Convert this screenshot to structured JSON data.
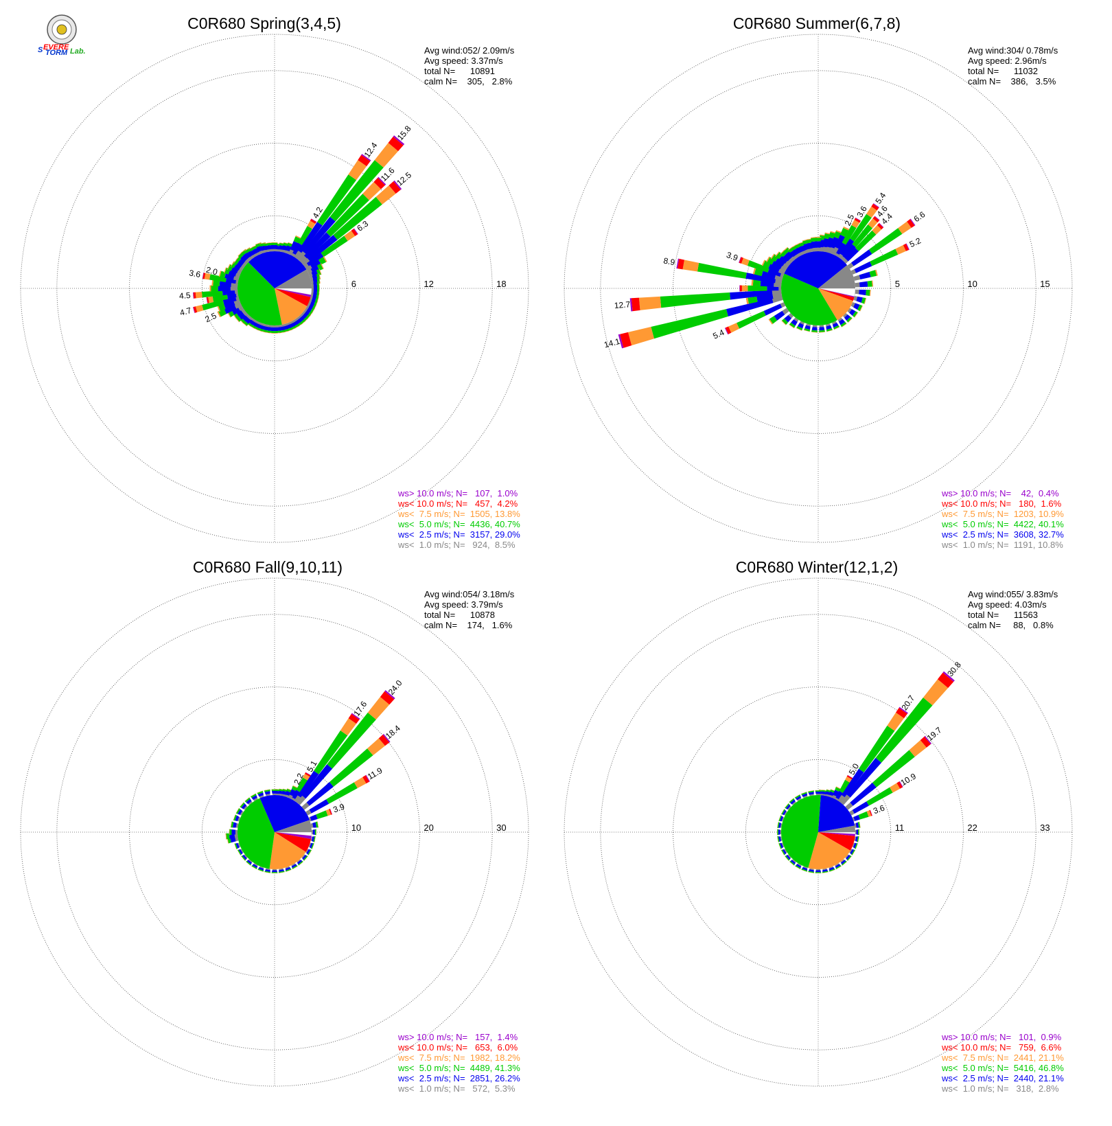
{
  "colors": {
    "gt10": "#9900cc",
    "lt10": "#ff0000",
    "lt7_5": "#ff9933",
    "lt5": "#00cc00",
    "lt2_5": "#0000ee",
    "lt1": "#888888"
  },
  "logo": {
    "name": "severe-storm-lab-logo",
    "text": "Severe Storm Lab."
  },
  "chart_data": [
    {
      "type": "windrose",
      "title": "C0R680 Spring(3,4,5)",
      "info": [
        "Avg wind:052/ 2.09m/s",
        "Avg speed: 3.37m/s",
        "total N=      10891",
        "calm N=    305,   2.8%"
      ],
      "ring_labels": [
        "6",
        "12",
        "18"
      ],
      "rmax": 18,
      "center_pct": {
        "calm": 2.8,
        "lt1": 8.5,
        "lt2_5": 29.0,
        "lt5": 40.7,
        "lt7_5": 13.8,
        "lt10": 4.2,
        "gt10": 1.0
      },
      "petals": [
        {
          "dir": 5,
          "total": 0.8
        },
        {
          "dir": 10,
          "total": 0.9
        },
        {
          "dir": 15,
          "total": 1.0
        },
        {
          "dir": 20,
          "total": 1.1
        },
        {
          "dir": 25,
          "total": 2.0
        },
        {
          "dir": 30,
          "total": 4.2,
          "label": "4.2"
        },
        {
          "dir": 35,
          "total": 12.4,
          "label": "12.4"
        },
        {
          "dir": 40,
          "total": 15.8,
          "label": "15.8"
        },
        {
          "dir": 45,
          "total": 11.6,
          "label": "11.6"
        },
        {
          "dir": 50,
          "total": 12.5,
          "label": "12.5"
        },
        {
          "dir": 55,
          "total": 6.3,
          "label": "6.3"
        },
        {
          "dir": 60,
          "total": 2.2
        },
        {
          "dir": 65,
          "total": 1.6
        },
        {
          "dir": 70,
          "total": 1.2
        },
        {
          "dir": 75,
          "total": 1.0
        },
        {
          "dir": 80,
          "total": 0.9
        },
        {
          "dir": 85,
          "total": 0.8
        },
        {
          "dir": 90,
          "total": 0.8
        },
        {
          "dir": 95,
          "total": 0.8
        },
        {
          "dir": 100,
          "total": 0.8
        },
        {
          "dir": 105,
          "total": 0.8
        },
        {
          "dir": 110,
          "total": 0.8
        },
        {
          "dir": 115,
          "total": 0.8
        },
        {
          "dir": 120,
          "total": 0.8
        },
        {
          "dir": 125,
          "total": 0.8
        },
        {
          "dir": 130,
          "total": 0.8
        },
        {
          "dir": 135,
          "total": 0.8
        },
        {
          "dir": 140,
          "total": 0.8
        },
        {
          "dir": 145,
          "total": 0.8
        },
        {
          "dir": 150,
          "total": 0.8
        },
        {
          "dir": 155,
          "total": 0.8
        },
        {
          "dir": 160,
          "total": 0.8
        },
        {
          "dir": 165,
          "total": 0.8
        },
        {
          "dir": 170,
          "total": 0.8
        },
        {
          "dir": 175,
          "total": 0.8
        },
        {
          "dir": 180,
          "total": 0.8
        },
        {
          "dir": 185,
          "total": 0.8
        },
        {
          "dir": 190,
          "total": 0.8
        },
        {
          "dir": 195,
          "total": 0.8
        },
        {
          "dir": 200,
          "total": 0.8
        },
        {
          "dir": 205,
          "total": 0.8
        },
        {
          "dir": 210,
          "total": 0.8
        },
        {
          "dir": 215,
          "total": 0.8
        },
        {
          "dir": 220,
          "total": 1.0
        },
        {
          "dir": 225,
          "total": 1.0
        },
        {
          "dir": 230,
          "total": 1.2
        },
        {
          "dir": 235,
          "total": 1.2
        },
        {
          "dir": 240,
          "total": 1.6
        },
        {
          "dir": 245,
          "total": 2.5,
          "label": "2.5"
        },
        {
          "dir": 250,
          "total": 2.3
        },
        {
          "dir": 255,
          "total": 4.7,
          "label": "4.7"
        },
        {
          "dir": 260,
          "total": 3.2
        },
        {
          "dir": 265,
          "total": 4.5,
          "label": "4.5"
        },
        {
          "dir": 270,
          "total": 2.8
        },
        {
          "dir": 275,
          "total": 2.6
        },
        {
          "dir": 280,
          "total": 3.6,
          "label": "3.6"
        },
        {
          "dir": 285,
          "total": 2.0,
          "label": "2.0"
        },
        {
          "dir": 290,
          "total": 1.6
        },
        {
          "dir": 295,
          "total": 1.4
        },
        {
          "dir": 300,
          "total": 1.2
        },
        {
          "dir": 305,
          "total": 1.1
        },
        {
          "dir": 310,
          "total": 1.1
        },
        {
          "dir": 315,
          "total": 1.2
        },
        {
          "dir": 320,
          "total": 1.2
        },
        {
          "dir": 325,
          "total": 1.1
        },
        {
          "dir": 330,
          "total": 1.0
        },
        {
          "dir": 335,
          "total": 1.0
        },
        {
          "dir": 340,
          "total": 1.1
        },
        {
          "dir": 345,
          "total": 1.0
        },
        {
          "dir": 350,
          "total": 0.9
        },
        {
          "dir": 355,
          "total": 0.9
        },
        {
          "dir": 0,
          "total": 0.9
        }
      ],
      "legend": [
        {
          "key": "gt10",
          "text": "ws> 10.0 m/s; N=   107,  1.0%"
        },
        {
          "key": "lt10",
          "text": "ws< 10.0 m/s; N=   457,  4.2%"
        },
        {
          "key": "lt7_5",
          "text": "ws<  7.5 m/s; N=  1505, 13.8%"
        },
        {
          "key": "lt5",
          "text": "ws<  5.0 m/s; N=  4436, 40.7%"
        },
        {
          "key": "lt2_5",
          "text": "ws<  2.5 m/s; N=  3157, 29.0%"
        },
        {
          "key": "lt1",
          "text": "ws<  1.0 m/s; N=   924,  8.5%"
        }
      ]
    },
    {
      "type": "windrose",
      "title": "C0R680 Summer(6,7,8)",
      "info": [
        "Avg wind:304/ 0.78m/s",
        "Avg speed: 2.96m/s",
        "total N=      11032",
        "calm N=    386,   3.5%"
      ],
      "ring_labels": [
        "5",
        "10",
        "15"
      ],
      "rmax": 15,
      "center_pct": {
        "calm": 3.5,
        "lt1": 10.8,
        "lt2_5": 32.7,
        "lt5": 40.1,
        "lt7_5": 10.9,
        "lt10": 1.6,
        "gt10": 0.4
      },
      "petals": [
        {
          "dir": 5,
          "total": 1.4
        },
        {
          "dir": 10,
          "total": 1.6
        },
        {
          "dir": 15,
          "total": 1.8
        },
        {
          "dir": 20,
          "total": 2.0
        },
        {
          "dir": 25,
          "total": 2.5,
          "label": "2.5"
        },
        {
          "dir": 30,
          "total": 3.6,
          "label": "3.6"
        },
        {
          "dir": 35,
          "total": 5.4,
          "label": "5.4"
        },
        {
          "dir": 40,
          "total": 4.6,
          "label": "4.6"
        },
        {
          "dir": 45,
          "total": 4.4,
          "label": "4.4"
        },
        {
          "dir": 55,
          "total": 6.6,
          "label": "6.6"
        },
        {
          "dir": 65,
          "total": 5.2,
          "label": "5.2"
        },
        {
          "dir": 75,
          "total": 2.0
        },
        {
          "dir": 85,
          "total": 1.5
        },
        {
          "dir": 95,
          "total": 1.3
        },
        {
          "dir": 105,
          "total": 1.0
        },
        {
          "dir": 115,
          "total": 0.9
        },
        {
          "dir": 125,
          "total": 0.8
        },
        {
          "dir": 135,
          "total": 0.7
        },
        {
          "dir": 145,
          "total": 0.7
        },
        {
          "dir": 155,
          "total": 0.6
        },
        {
          "dir": 165,
          "total": 0.6
        },
        {
          "dir": 175,
          "total": 0.6
        },
        {
          "dir": 185,
          "total": 0.6
        },
        {
          "dir": 195,
          "total": 0.6
        },
        {
          "dir": 205,
          "total": 0.7
        },
        {
          "dir": 215,
          "total": 0.8
        },
        {
          "dir": 225,
          "total": 1.0
        },
        {
          "dir": 235,
          "total": 1.8
        },
        {
          "dir": 245,
          "total": 5.4,
          "label": "5.4"
        },
        {
          "dir": 255,
          "total": 14.1,
          "label": "14.1"
        },
        {
          "dir": 260,
          "total": 3.0
        },
        {
          "dir": 265,
          "total": 12.7,
          "label": "12.7"
        },
        {
          "dir": 270,
          "total": 3.5
        },
        {
          "dir": 275,
          "total": 2.5
        },
        {
          "dir": 280,
          "total": 8.9,
          "label": "8.9"
        },
        {
          "dir": 285,
          "total": 2.5
        },
        {
          "dir": 290,
          "total": 3.9,
          "label": "3.9"
        },
        {
          "dir": 295,
          "total": 2.0
        },
        {
          "dir": 300,
          "total": 1.8
        },
        {
          "dir": 305,
          "total": 1.6
        },
        {
          "dir": 310,
          "total": 1.4
        },
        {
          "dir": 315,
          "total": 1.2
        },
        {
          "dir": 320,
          "total": 1.2
        },
        {
          "dir": 325,
          "total": 1.0
        },
        {
          "dir": 330,
          "total": 1.0
        },
        {
          "dir": 335,
          "total": 1.0
        },
        {
          "dir": 340,
          "total": 1.0
        },
        {
          "dir": 345,
          "total": 1.1
        },
        {
          "dir": 350,
          "total": 1.1
        },
        {
          "dir": 355,
          "total": 1.2
        },
        {
          "dir": 0,
          "total": 1.2
        }
      ],
      "legend": [
        {
          "key": "gt10",
          "text": "ws> 10.0 m/s; N=    42,  0.4%"
        },
        {
          "key": "lt10",
          "text": "ws< 10.0 m/s; N=   180,  1.6%"
        },
        {
          "key": "lt7_5",
          "text": "ws<  7.5 m/s; N=  1203, 10.9%"
        },
        {
          "key": "lt5",
          "text": "ws<  5.0 m/s; N=  4422, 40.1%"
        },
        {
          "key": "lt2_5",
          "text": "ws<  2.5 m/s; N=  3608, 32.7%"
        },
        {
          "key": "lt1",
          "text": "ws<  1.0 m/s; N=  1191, 10.8%"
        }
      ]
    },
    {
      "type": "windrose",
      "title": "C0R680 Fall(9,10,11)",
      "info": [
        "Avg wind:054/ 3.18m/s",
        "Avg speed: 3.79m/s",
        "total N=      10878",
        "calm N=    174,   1.6%"
      ],
      "ring_labels": [
        "10",
        "20",
        "30"
      ],
      "rmax": 30,
      "center_pct": {
        "calm": 1.6,
        "lt1": 5.3,
        "lt2_5": 26.2,
        "lt5": 41.3,
        "lt7_5": 18.2,
        "lt10": 6.0,
        "gt10": 1.4
      },
      "petals": [
        {
          "dir": 5,
          "total": 1.0
        },
        {
          "dir": 10,
          "total": 1.1
        },
        {
          "dir": 15,
          "total": 1.2
        },
        {
          "dir": 20,
          "total": 1.4
        },
        {
          "dir": 25,
          "total": 2.2,
          "label": "2.2"
        },
        {
          "dir": 30,
          "total": 5.1,
          "label": "5.1"
        },
        {
          "dir": 35,
          "total": 17.6,
          "label": "17.6"
        },
        {
          "dir": 40,
          "total": 24.0,
          "label": "24.0"
        },
        {
          "dir": 50,
          "total": 18.4,
          "label": "18.4"
        },
        {
          "dir": 60,
          "total": 11.9,
          "label": "11.9"
        },
        {
          "dir": 70,
          "total": 3.9,
          "label": "3.9"
        },
        {
          "dir": 80,
          "total": 1.2
        },
        {
          "dir": 90,
          "total": 0.8
        },
        {
          "dir": 100,
          "total": 0.7
        },
        {
          "dir": 110,
          "total": 0.6
        },
        {
          "dir": 120,
          "total": 0.6
        },
        {
          "dir": 130,
          "total": 0.6
        },
        {
          "dir": 140,
          "total": 0.6
        },
        {
          "dir": 150,
          "total": 0.6
        },
        {
          "dir": 160,
          "total": 0.6
        },
        {
          "dir": 170,
          "total": 0.6
        },
        {
          "dir": 180,
          "total": 0.6
        },
        {
          "dir": 190,
          "total": 0.6
        },
        {
          "dir": 200,
          "total": 0.6
        },
        {
          "dir": 210,
          "total": 0.6
        },
        {
          "dir": 220,
          "total": 0.6
        },
        {
          "dir": 230,
          "total": 0.6
        },
        {
          "dir": 240,
          "total": 0.7
        },
        {
          "dir": 250,
          "total": 0.8
        },
        {
          "dir": 260,
          "total": 1.8
        },
        {
          "dir": 265,
          "total": 2.0
        },
        {
          "dir": 270,
          "total": 1.4
        },
        {
          "dir": 280,
          "total": 1.2
        },
        {
          "dir": 290,
          "total": 1.0
        },
        {
          "dir": 300,
          "total": 1.0
        },
        {
          "dir": 310,
          "total": 1.0
        },
        {
          "dir": 320,
          "total": 1.0
        },
        {
          "dir": 330,
          "total": 1.0
        },
        {
          "dir": 340,
          "total": 1.0
        },
        {
          "dir": 350,
          "total": 1.0
        },
        {
          "dir": 0,
          "total": 1.0
        }
      ],
      "legend": [
        {
          "key": "gt10",
          "text": "ws> 10.0 m/s; N=   157,  1.4%"
        },
        {
          "key": "lt10",
          "text": "ws< 10.0 m/s; N=   653,  6.0%"
        },
        {
          "key": "lt7_5",
          "text": "ws<  7.5 m/s; N=  1982, 18.2%"
        },
        {
          "key": "lt5",
          "text": "ws<  5.0 m/s; N=  4489, 41.3%"
        },
        {
          "key": "lt2_5",
          "text": "ws<  2.5 m/s; N=  2851, 26.2%"
        },
        {
          "key": "lt1",
          "text": "ws<  1.0 m/s; N=   572,  5.3%"
        }
      ]
    },
    {
      "type": "windrose",
      "title": "C0R680 Winter(12,1,2)",
      "info": [
        "Avg wind:055/ 3.83m/s",
        "Avg speed: 4.03m/s",
        "total N=      11563",
        "calm N=     88,   0.8%"
      ],
      "ring_labels": [
        "11",
        "22",
        "33"
      ],
      "rmax": 33,
      "center_pct": {
        "calm": 0.8,
        "lt1": 2.8,
        "lt2_5": 21.1,
        "lt5": 46.8,
        "lt7_5": 21.1,
        "lt10": 6.6,
        "gt10": 0.9
      },
      "petals": [
        {
          "dir": 5,
          "total": 1.0
        },
        {
          "dir": 10,
          "total": 1.0
        },
        {
          "dir": 15,
          "total": 1.2
        },
        {
          "dir": 20,
          "total": 1.4
        },
        {
          "dir": 25,
          "total": 2.2
        },
        {
          "dir": 30,
          "total": 5.0,
          "label": "5.0"
        },
        {
          "dir": 35,
          "total": 20.7,
          "label": "20.7"
        },
        {
          "dir": 40,
          "total": 30.8,
          "label": "30.8"
        },
        {
          "dir": 50,
          "total": 19.7,
          "label": "19.7"
        },
        {
          "dir": 60,
          "total": 10.9,
          "label": "10.9"
        },
        {
          "dir": 70,
          "total": 3.6,
          "label": "3.6"
        },
        {
          "dir": 80,
          "total": 1.0
        },
        {
          "dir": 90,
          "total": 0.7
        },
        {
          "dir": 100,
          "total": 0.6
        },
        {
          "dir": 110,
          "total": 0.5
        },
        {
          "dir": 120,
          "total": 0.5
        },
        {
          "dir": 130,
          "total": 0.5
        },
        {
          "dir": 140,
          "total": 0.5
        },
        {
          "dir": 150,
          "total": 0.5
        },
        {
          "dir": 160,
          "total": 0.5
        },
        {
          "dir": 170,
          "total": 0.5
        },
        {
          "dir": 180,
          "total": 0.5
        },
        {
          "dir": 190,
          "total": 0.5
        },
        {
          "dir": 200,
          "total": 0.5
        },
        {
          "dir": 210,
          "total": 0.5
        },
        {
          "dir": 220,
          "total": 0.5
        },
        {
          "dir": 230,
          "total": 0.5
        },
        {
          "dir": 240,
          "total": 0.5
        },
        {
          "dir": 250,
          "total": 0.5
        },
        {
          "dir": 260,
          "total": 0.5
        },
        {
          "dir": 270,
          "total": 0.5
        },
        {
          "dir": 280,
          "total": 0.5
        },
        {
          "dir": 290,
          "total": 0.6
        },
        {
          "dir": 300,
          "total": 0.7
        },
        {
          "dir": 310,
          "total": 0.8
        },
        {
          "dir": 320,
          "total": 0.9
        },
        {
          "dir": 330,
          "total": 0.9
        },
        {
          "dir": 340,
          "total": 0.9
        },
        {
          "dir": 350,
          "total": 0.9
        },
        {
          "dir": 0,
          "total": 0.9
        }
      ],
      "legend": [
        {
          "key": "gt10",
          "text": "ws> 10.0 m/s; N=   101,  0.9%"
        },
        {
          "key": "lt10",
          "text": "ws< 10.0 m/s; N=   759,  6.6%"
        },
        {
          "key": "lt7_5",
          "text": "ws<  7.5 m/s; N=  2441, 21.1%"
        },
        {
          "key": "lt5",
          "text": "ws<  5.0 m/s; N=  5416, 46.8%"
        },
        {
          "key": "lt2_5",
          "text": "ws<  2.5 m/s; N=  2440, 21.1%"
        },
        {
          "key": "lt1",
          "text": "ws<  1.0 m/s; N=   318,  2.8%"
        }
      ]
    }
  ]
}
